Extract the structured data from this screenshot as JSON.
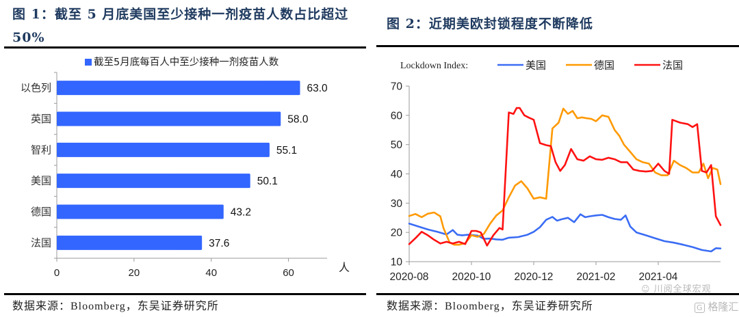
{
  "figure1": {
    "title_line1": "图 1：截至 5 月底美国至少接种一剂疫苗人数占比超过",
    "title_line2": "50%",
    "source": "数据来源：Bloomberg，东吴证券研究所"
  },
  "figure2": {
    "title": "图 2：近期美欧封锁程度不断降低",
    "source": "数据来源：Bloomberg，东吴证券研究所"
  },
  "watermarks": {
    "wechat": "川阅全球宏观",
    "logo": "格隆汇"
  },
  "chart_data": [
    {
      "type": "bar",
      "orientation": "horizontal",
      "title": "",
      "legend": [
        "截至5月底每百人中至少接种一剂疫苗人数"
      ],
      "legend_position": "top",
      "categories": [
        "以色列",
        "英国",
        "智利",
        "美国",
        "德国",
        "法国"
      ],
      "values": [
        63.0,
        58.0,
        55.1,
        50.1,
        43.2,
        37.6
      ],
      "value_labels": [
        "63.0",
        "58.0",
        "55.1",
        "50.1",
        "43.2",
        "37.6"
      ],
      "xlabel": "人",
      "ylabel": "",
      "xlim": [
        0,
        70
      ],
      "xticks": [
        "0",
        "20",
        "40",
        "60"
      ],
      "grid": false,
      "color": "#3366ff"
    },
    {
      "type": "line",
      "title": "",
      "legend_title": "Lockdown Index:",
      "legend_position": "top",
      "xlabel": "",
      "ylabel": "",
      "ylim": [
        10,
        70
      ],
      "yticks": [
        "10",
        "20",
        "30",
        "40",
        "50",
        "60",
        "70"
      ],
      "xticks": [
        "2020-08",
        "2020-10",
        "2020-12",
        "2021-02",
        "2021-04"
      ],
      "xrange_months": [
        0,
        10.0
      ],
      "grid": false,
      "series": [
        {
          "name": "美国",
          "color": "#3a6cf4",
          "x": [
            0,
            0.3,
            0.6,
            0.9,
            1.2,
            1.4,
            1.55,
            1.7,
            1.9,
            2.2,
            2.4,
            2.6,
            2.8,
            3.0,
            3.2,
            3.5,
            3.8,
            4.0,
            4.2,
            4.4,
            4.6,
            4.75,
            4.9,
            5.1,
            5.3,
            5.5,
            5.65,
            5.8,
            6.0,
            6.2,
            6.4,
            6.6,
            6.8,
            6.95,
            7.1,
            7.3,
            7.6,
            7.9,
            8.2,
            8.5,
            8.8,
            9.1,
            9.4,
            9.7,
            9.85,
            10.0
          ],
          "values": [
            23.0,
            22.0,
            21.0,
            20.2,
            19.3,
            20.8,
            19.2,
            19.0,
            19.2,
            18.9,
            17.8,
            17.9,
            17.6,
            17.5,
            18.2,
            18.4,
            19.2,
            20.2,
            21.8,
            24.3,
            25.3,
            24.0,
            24.5,
            25.0,
            23.5,
            26.2,
            25.2,
            25.5,
            25.8,
            26.0,
            25.2,
            24.6,
            24.3,
            25.8,
            22.0,
            20.0,
            19.0,
            18.0,
            17.0,
            16.5,
            15.8,
            15.0,
            14.0,
            13.5,
            14.6,
            14.5
          ]
        },
        {
          "name": "德国",
          "color": "#ff9900",
          "x": [
            0,
            0.2,
            0.4,
            0.6,
            0.8,
            1.0,
            1.1,
            1.3,
            1.45,
            1.6,
            1.8,
            2.0,
            2.2,
            2.4,
            2.6,
            2.8,
            3.0,
            3.2,
            3.4,
            3.6,
            3.8,
            4.0,
            4.2,
            4.4,
            4.6,
            4.8,
            4.95,
            5.1,
            5.25,
            5.4,
            5.55,
            5.7,
            5.85,
            6.0,
            6.2,
            6.4,
            6.6,
            6.75,
            6.9,
            7.1,
            7.3,
            7.5,
            7.7,
            7.9,
            8.1,
            8.3,
            8.5,
            8.7,
            8.9,
            9.1,
            9.3,
            9.45,
            9.6,
            9.75,
            9.9,
            10.0
          ],
          "values": [
            25.6,
            26.3,
            25.2,
            26.4,
            26.8,
            25.5,
            21.5,
            16.5,
            15.8,
            15.8,
            16.3,
            19.0,
            18.5,
            19.5,
            23.0,
            25.8,
            27.5,
            32.0,
            36.0,
            37.5,
            35.0,
            31.5,
            32.0,
            31.5,
            55.5,
            57.5,
            62.3,
            60.5,
            61.5,
            59.0,
            59.3,
            59.0,
            58.8,
            58.0,
            60.0,
            59.5,
            55.0,
            53.0,
            50.0,
            47.5,
            45.0,
            44.0,
            43.5,
            40.5,
            39.5,
            39.5,
            44.5,
            43.0,
            42.0,
            40.5,
            40.5,
            43.5,
            38.5,
            42.0,
            41.5,
            36.5
          ]
        },
        {
          "name": "法国",
          "color": "#ff1111",
          "x": [
            0,
            0.2,
            0.4,
            0.6,
            0.8,
            1.0,
            1.2,
            1.4,
            1.6,
            1.8,
            2.0,
            2.15,
            2.3,
            2.5,
            2.7,
            2.9,
            3.0,
            3.2,
            3.35,
            3.45,
            3.55,
            3.7,
            3.85,
            4.0,
            4.2,
            4.4,
            4.55,
            4.7,
            4.85,
            5.0,
            5.2,
            5.4,
            5.6,
            5.8,
            6.0,
            6.2,
            6.4,
            6.6,
            6.8,
            7.0,
            7.2,
            7.4,
            7.6,
            7.8,
            8.0,
            8.2,
            8.35,
            8.45,
            8.7,
            8.95,
            9.1,
            9.25,
            9.4,
            9.55,
            9.7,
            9.85,
            10.0
          ],
          "values": [
            16.0,
            18.0,
            20.2,
            19.0,
            17.5,
            16.2,
            16.8,
            16.2,
            16.8,
            16.0,
            20.5,
            20.5,
            20.0,
            15.5,
            19.0,
            21.5,
            21.0,
            61.0,
            60.5,
            62.5,
            62.5,
            60.0,
            59.2,
            58.5,
            50.5,
            49.8,
            49.5,
            44.0,
            41.0,
            43.0,
            48.5,
            45.0,
            44.5,
            46.0,
            45.0,
            44.8,
            45.5,
            45.0,
            44.0,
            44.0,
            41.5,
            41.0,
            40.8,
            41.0,
            43.5,
            41.0,
            40.0,
            58.5,
            57.5,
            57.0,
            56.0,
            57.0,
            41.0,
            40.5,
            43.0,
            25.5,
            22.5
          ]
        }
      ]
    }
  ]
}
